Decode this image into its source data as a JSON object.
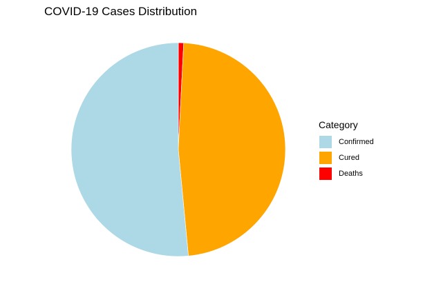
{
  "chart_data": {
    "type": "pie",
    "title": "COVID-19 Cases Distribution",
    "legend_title": "Category",
    "legend_position": "right",
    "categories": [
      "Confirmed",
      "Cured",
      "Deaths"
    ],
    "values": [
      51.5,
      47.7,
      0.8
    ],
    "colors": [
      "#add8e6",
      "#ffa500",
      "#ff0000"
    ]
  }
}
